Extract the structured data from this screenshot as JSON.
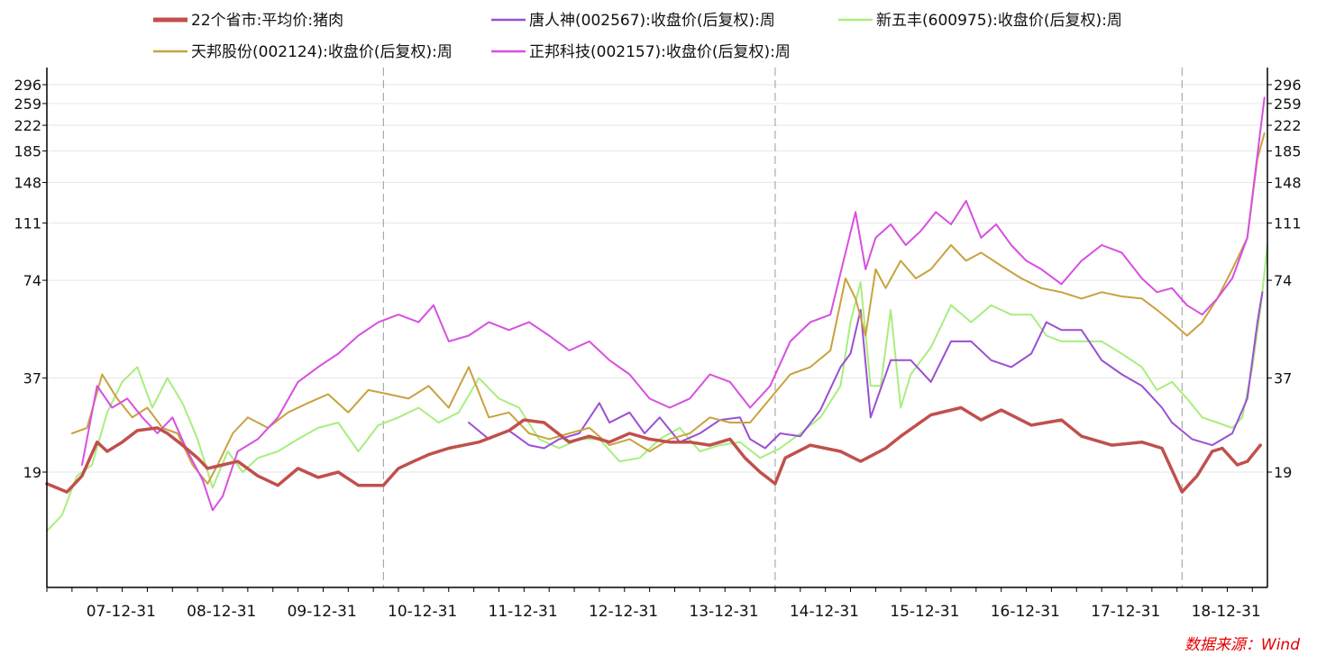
{
  "chart_data": {
    "type": "line",
    "title": "",
    "xlabel": "",
    "ylabel": "",
    "y_scale": "log",
    "y_ticks": [
      19,
      37,
      74,
      111,
      148,
      185,
      222,
      259,
      296
    ],
    "y_tick_labels": [
      "19",
      "37",
      "74",
      "111",
      "148",
      "185",
      "222",
      "259",
      "296"
    ],
    "ylim": [
      12,
      320
    ],
    "x_ticks": [
      2007.99,
      2008.99,
      2009.99,
      2010.99,
      2011.99,
      2012.99,
      2013.99,
      2014.99,
      2015.99,
      2016.99,
      2017.99,
      2018.99
    ],
    "x_tick_labels": [
      "07-12-31",
      "08-12-31",
      "09-12-31",
      "10-12-31",
      "11-12-31",
      "12-12-31",
      "13-12-31",
      "14-12-31",
      "15-12-31",
      "16-12-31",
      "17-12-31",
      "18-12-31"
    ],
    "xlim": [
      2007.0,
      2019.15
    ],
    "vertical_markers": [
      2010.35,
      2014.25,
      2018.3
    ],
    "legend_position": "top",
    "grid": "horizontal",
    "source": "数据来源：Wind",
    "series": [
      {
        "name": "22个省市:平均价:猪肉",
        "color": "#c0504d",
        "x": [
          2007.0,
          2007.2,
          2007.35,
          2007.5,
          2007.6,
          2007.75,
          2007.9,
          2008.1,
          2008.2,
          2008.35,
          2008.5,
          2008.6,
          2008.75,
          2008.9,
          2009.1,
          2009.3,
          2009.5,
          2009.7,
          2009.9,
          2010.1,
          2010.35,
          2010.5,
          2010.65,
          2010.8,
          2011.0,
          2011.3,
          2011.6,
          2011.75,
          2011.95,
          2012.2,
          2012.4,
          2012.6,
          2012.8,
          2013.0,
          2013.2,
          2013.4,
          2013.6,
          2013.8,
          2013.95,
          2014.1,
          2014.25,
          2014.35,
          2014.6,
          2014.9,
          2015.1,
          2015.35,
          2015.5,
          2015.8,
          2016.1,
          2016.3,
          2016.5,
          2016.8,
          2017.1,
          2017.3,
          2017.6,
          2017.9,
          2018.1,
          2018.3,
          2018.45,
          2018.6,
          2018.7,
          2018.85,
          2018.95,
          2019.08
        ],
        "values": [
          17.5,
          16.5,
          18.5,
          23.5,
          22.0,
          23.5,
          25.5,
          26.0,
          25.0,
          23.0,
          21.0,
          19.5,
          20.0,
          20.5,
          18.5,
          17.3,
          19.5,
          18.3,
          19.0,
          17.3,
          17.3,
          19.5,
          20.5,
          21.5,
          22.5,
          23.5,
          25.5,
          27.5,
          27.0,
          23.5,
          24.5,
          23.5,
          25.0,
          24.0,
          23.5,
          23.5,
          23.0,
          24.0,
          21.0,
          19.0,
          17.5,
          21.0,
          23.0,
          22.0,
          20.5,
          22.5,
          24.5,
          28.5,
          30.0,
          27.5,
          29.5,
          26.5,
          27.5,
          24.5,
          23.0,
          23.5,
          22.5,
          16.5,
          18.5,
          22.0,
          22.5,
          20.0,
          20.5,
          23.0
        ]
      },
      {
        "name": "唐人神(002567):收盘价(后复权):周",
        "color": "#9b4fd1",
        "x": [
          2011.2,
          2011.4,
          2011.6,
          2011.8,
          2011.95,
          2012.1,
          2012.3,
          2012.5,
          2012.6,
          2012.8,
          2012.95,
          2013.1,
          2013.3,
          2013.5,
          2013.7,
          2013.9,
          2014.0,
          2014.15,
          2014.3,
          2014.5,
          2014.7,
          2014.9,
          2015.0,
          2015.1,
          2015.2,
          2015.4,
          2015.6,
          2015.8,
          2016.0,
          2016.2,
          2016.4,
          2016.6,
          2016.8,
          2016.95,
          2017.1,
          2017.3,
          2017.5,
          2017.7,
          2017.9,
          2018.1,
          2018.2,
          2018.4,
          2018.6,
          2018.8,
          2018.95,
          2019.05,
          2019.1
        ],
        "values": [
          27.0,
          24.0,
          25.5,
          23.0,
          22.5,
          24.0,
          25.0,
          31.0,
          27.0,
          29.0,
          25.0,
          28.0,
          23.5,
          25.0,
          27.5,
          28.0,
          24.0,
          22.5,
          25.0,
          24.5,
          29.5,
          40.0,
          44.0,
          60.0,
          28.0,
          42.0,
          42.0,
          36.0,
          48.0,
          48.0,
          42.0,
          40.0,
          44.0,
          55.0,
          52.0,
          52.0,
          42.0,
          38.0,
          35.0,
          30.0,
          27.0,
          24.0,
          23.0,
          25.0,
          32.0,
          55.0,
          68.0
        ]
      },
      {
        "name": "新五丰(600975):收盘价(后复权):周",
        "color": "#a8ee7f",
        "x": [
          2007.0,
          2007.15,
          2007.3,
          2007.45,
          2007.6,
          2007.75,
          2007.9,
          2008.05,
          2008.2,
          2008.35,
          2008.5,
          2008.65,
          2008.8,
          2008.95,
          2009.1,
          2009.3,
          2009.5,
          2009.7,
          2009.9,
          2010.1,
          2010.3,
          2010.5,
          2010.7,
          2010.9,
          2011.1,
          2011.3,
          2011.5,
          2011.7,
          2011.9,
          2012.1,
          2012.3,
          2012.5,
          2012.7,
          2012.9,
          2013.1,
          2013.3,
          2013.5,
          2013.7,
          2013.9,
          2014.1,
          2014.3,
          2014.5,
          2014.7,
          2014.9,
          2015.0,
          2015.1,
          2015.2,
          2015.3,
          2015.4,
          2015.5,
          2015.6,
          2015.8,
          2016.0,
          2016.2,
          2016.4,
          2016.6,
          2016.8,
          2016.95,
          2017.1,
          2017.3,
          2017.5,
          2017.7,
          2017.9,
          2018.05,
          2018.2,
          2018.35,
          2018.5,
          2018.65,
          2018.8,
          2018.9,
          2019.0,
          2019.08,
          2019.15
        ],
        "values": [
          12.5,
          14.0,
          18.5,
          20.0,
          29.0,
          36.0,
          40.0,
          30.0,
          37.0,
          31.0,
          24.0,
          17.0,
          22.0,
          19.0,
          21.0,
          22.0,
          24.0,
          26.0,
          27.0,
          22.0,
          26.5,
          28.0,
          30.0,
          27.0,
          29.0,
          37.0,
          32.0,
          30.0,
          24.0,
          22.5,
          24.0,
          24.0,
          20.5,
          21.0,
          24.0,
          26.0,
          22.0,
          23.0,
          23.5,
          21.0,
          22.5,
          25.0,
          28.0,
          35.0,
          55.0,
          73.0,
          35.0,
          35.0,
          60.0,
          30.0,
          38.0,
          46.0,
          62.0,
          55.0,
          62.0,
          58.0,
          58.0,
          50.0,
          48.0,
          48.0,
          48.0,
          44.0,
          40.0,
          34.0,
          36.0,
          32.0,
          28.0,
          27.0,
          26.0,
          28.0,
          40.0,
          60.0,
          95.0
        ]
      },
      {
        "name": "天邦股份(002124):收盘价(后复权):周",
        "color": "#c9a23f",
        "x": [
          2007.25,
          2007.4,
          2007.55,
          2007.7,
          2007.85,
          2008.0,
          2008.15,
          2008.3,
          2008.45,
          2008.6,
          2008.7,
          2008.85,
          2009.0,
          2009.2,
          2009.4,
          2009.6,
          2009.8,
          2010.0,
          2010.2,
          2010.4,
          2010.6,
          2010.8,
          2011.0,
          2011.2,
          2011.4,
          2011.6,
          2011.8,
          2012.0,
          2012.2,
          2012.4,
          2012.6,
          2012.8,
          2013.0,
          2013.2,
          2013.4,
          2013.6,
          2013.8,
          2014.0,
          2014.2,
          2014.4,
          2014.6,
          2014.8,
          2014.95,
          2015.05,
          2015.15,
          2015.25,
          2015.35,
          2015.5,
          2015.65,
          2015.8,
          2016.0,
          2016.15,
          2016.3,
          2016.5,
          2016.7,
          2016.9,
          2017.1,
          2017.3,
          2017.5,
          2017.7,
          2017.9,
          2018.05,
          2018.2,
          2018.35,
          2018.5,
          2018.65,
          2018.8,
          2018.95,
          2019.05,
          2019.12
        ],
        "values": [
          25.0,
          26.0,
          38.0,
          32.0,
          28.0,
          30.0,
          26.0,
          25.0,
          20.0,
          17.5,
          20.0,
          25.0,
          28.0,
          26.0,
          29.0,
          31.0,
          33.0,
          29.0,
          34.0,
          33.0,
          32.0,
          35.0,
          30.0,
          40.0,
          28.0,
          29.0,
          25.0,
          24.0,
          25.0,
          26.0,
          23.0,
          24.0,
          22.0,
          24.0,
          25.0,
          28.0,
          27.0,
          27.0,
          32.0,
          38.0,
          40.0,
          45.0,
          75.0,
          65.0,
          50.0,
          80.0,
          70.0,
          85.0,
          75.0,
          80.0,
          95.0,
          85.0,
          90.0,
          82.0,
          75.0,
          70.0,
          68.0,
          65.0,
          68.0,
          66.0,
          65.0,
          60.0,
          55.0,
          50.0,
          55.0,
          65.0,
          80.0,
          100.0,
          175.0,
          210.0
        ]
      },
      {
        "name": "正邦科技(002157):收盘价(后复权):周",
        "color": "#d84fe0",
        "x": [
          2007.35,
          2007.5,
          2007.65,
          2007.8,
          2007.95,
          2008.1,
          2008.25,
          2008.4,
          2008.55,
          2008.65,
          2008.75,
          2008.9,
          2009.1,
          2009.3,
          2009.5,
          2009.7,
          2009.9,
          2010.1,
          2010.3,
          2010.5,
          2010.7,
          2010.85,
          2011.0,
          2011.2,
          2011.4,
          2011.6,
          2011.8,
          2012.0,
          2012.2,
          2012.4,
          2012.6,
          2012.8,
          2013.0,
          2013.2,
          2013.4,
          2013.6,
          2013.8,
          2014.0,
          2014.2,
          2014.4,
          2014.6,
          2014.8,
          2014.95,
          2015.05,
          2015.15,
          2015.25,
          2015.4,
          2015.55,
          2015.7,
          2015.85,
          2016.0,
          2016.15,
          2016.3,
          2016.45,
          2016.6,
          2016.75,
          2016.9,
          2017.1,
          2017.3,
          2017.5,
          2017.7,
          2017.9,
          2018.05,
          2018.2,
          2018.35,
          2018.5,
          2018.65,
          2018.8,
          2018.95,
          2019.05,
          2019.12
        ],
        "values": [
          20.0,
          35.0,
          30.0,
          32.0,
          28.0,
          25.0,
          28.0,
          22.0,
          18.0,
          14.5,
          16.0,
          22.0,
          24.0,
          28.0,
          36.0,
          40.0,
          44.0,
          50.0,
          55.0,
          58.0,
          55.0,
          62.0,
          48.0,
          50.0,
          55.0,
          52.0,
          55.0,
          50.0,
          45.0,
          48.0,
          42.0,
          38.0,
          32.0,
          30.0,
          32.0,
          38.0,
          36.0,
          30.0,
          35.0,
          48.0,
          55.0,
          58.0,
          90.0,
          120.0,
          80.0,
          100.0,
          110.0,
          95.0,
          105.0,
          120.0,
          110.0,
          130.0,
          100.0,
          110.0,
          95.0,
          85.0,
          80.0,
          72.0,
          85.0,
          95.0,
          90.0,
          75.0,
          68.0,
          70.0,
          62.0,
          58.0,
          65.0,
          75.0,
          100.0,
          180.0,
          270.0
        ]
      }
    ]
  }
}
